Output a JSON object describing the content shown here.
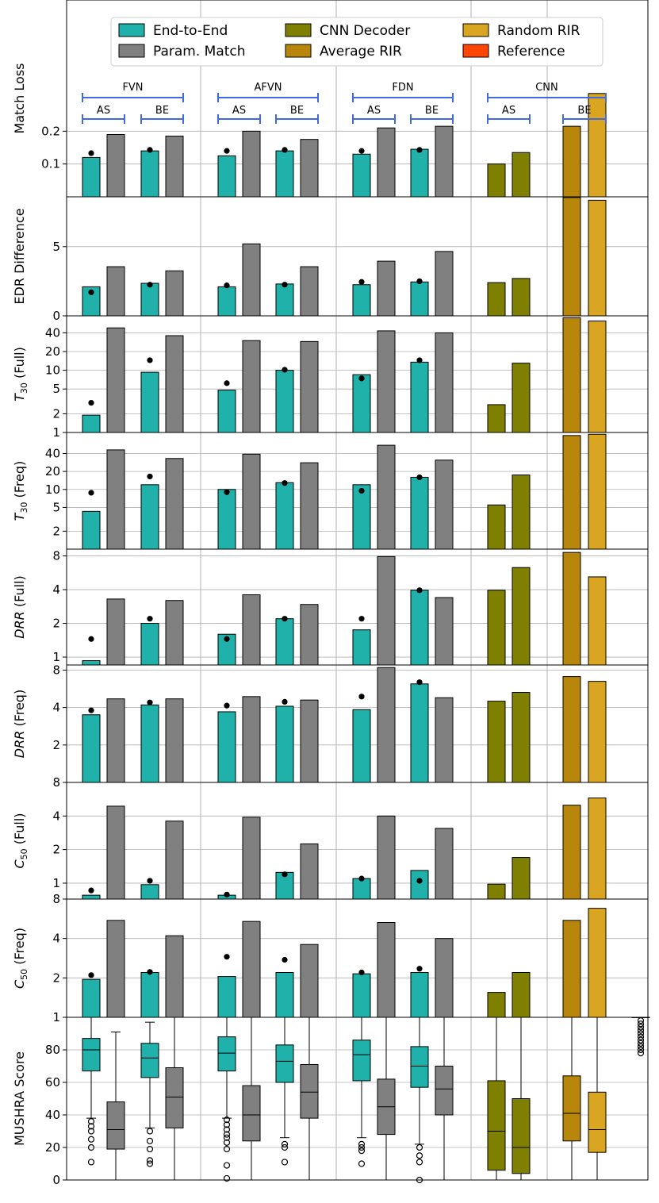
{
  "legend": {
    "placement": "top",
    "entries": [
      {
        "label": "End-to-End",
        "color": "#20b2aa"
      },
      {
        "label": "Param. Match",
        "color": "#808080"
      },
      {
        "label": "CNN Decoder",
        "color": "#808000"
      },
      {
        "label": "Average RIR",
        "color": "#b8860b"
      },
      {
        "label": "Random RIR",
        "color": "#daa520"
      },
      {
        "label": "Reference",
        "color": "#ff4500"
      }
    ]
  },
  "groups": [
    {
      "label": "FVN",
      "sub": [
        "AS",
        "BE"
      ]
    },
    {
      "label": "AFVN",
      "sub": [
        "AS",
        "BE"
      ]
    },
    {
      "label": "FDN",
      "sub": [
        "AS",
        "BE"
      ]
    },
    {
      "label": "CNN",
      "sub": [
        "AS",
        "BE"
      ]
    }
  ],
  "chart_data": [
    {
      "type": "bar",
      "ylabel": "Match Loss",
      "scale": "linear",
      "ylim": [
        0,
        0.6
      ],
      "ticks": [
        {
          "v": 0.1,
          "label": "0.1"
        },
        {
          "v": 0.2,
          "label": "0.2"
        }
      ],
      "bars": [
        0.12,
        0.19,
        0.14,
        0.185,
        0.125,
        0.2,
        0.14,
        0.175,
        0.13,
        0.21,
        0.145,
        0.215,
        0.1,
        0.135,
        0.215,
        0.315
      ],
      "dots": [
        0.133,
        null,
        0.143,
        null,
        0.14,
        null,
        0.143,
        null,
        0.14,
        null,
        0.143,
        null,
        null,
        null,
        null,
        null
      ]
    },
    {
      "type": "bar",
      "ylabel": "EDR Difference",
      "scale": "linear",
      "ylim": [
        0,
        8.6
      ],
      "ticks": [
        {
          "v": 0,
          "label": "0"
        },
        {
          "v": 5,
          "label": "5"
        }
      ],
      "bars": [
        2.1,
        3.55,
        2.35,
        3.25,
        2.1,
        5.2,
        2.3,
        3.55,
        2.25,
        3.95,
        2.45,
        4.65,
        2.4,
        2.7,
        8.55,
        8.35
      ],
      "dots": [
        1.7,
        null,
        2.25,
        null,
        2.2,
        null,
        2.25,
        null,
        2.45,
        null,
        2.5,
        null,
        null,
        null,
        null,
        null
      ]
    },
    {
      "type": "bar",
      "ylabel": "T30 (Full)",
      "sub": "30",
      "label_pre": "T",
      "label_post": " (Full)",
      "scale": "log",
      "ylim": [
        1,
        75
      ],
      "ticks": [
        {
          "v": 1,
          "label": "1"
        },
        {
          "v": 2,
          "label": "2"
        },
        {
          "v": 5,
          "label": "5"
        },
        {
          "v": 10,
          "label": "10"
        },
        {
          "v": 20,
          "label": "20"
        },
        {
          "v": 40,
          "label": "40"
        }
      ],
      "bars": [
        1.9,
        48,
        9.3,
        36,
        4.8,
        30,
        10,
        29,
        8.5,
        43,
        13.5,
        40,
        2.8,
        13,
        70,
        62
      ],
      "dots": [
        3.0,
        null,
        14.5,
        null,
        6.2,
        null,
        10.2,
        null,
        7.4,
        null,
        14.5,
        null,
        null,
        null,
        null,
        null
      ]
    },
    {
      "type": "bar",
      "ylabel": "T30 (Freq)",
      "sub": "30",
      "label_pre": "T",
      "label_post": " (Freq)",
      "scale": "log",
      "ylim": [
        1,
        90
      ],
      "ticks": [
        {
          "v": 2,
          "label": "2"
        },
        {
          "v": 5,
          "label": "5"
        },
        {
          "v": 10,
          "label": "10"
        },
        {
          "v": 20,
          "label": "20"
        },
        {
          "v": 40,
          "label": "40"
        }
      ],
      "bars": [
        4.3,
        46,
        12,
        33,
        10,
        39,
        13,
        28,
        12,
        55,
        16,
        31,
        5.5,
        17.5,
        80,
        84
      ],
      "dots": [
        8.8,
        null,
        16.5,
        null,
        9.0,
        null,
        12.8,
        null,
        9.5,
        null,
        16,
        null,
        null,
        null,
        null,
        null
      ]
    },
    {
      "type": "bar",
      "ylabel": "DRR (Full)",
      "label_pre": "DRR",
      "label_post": " (Full)",
      "scale": "log",
      "ylim": [
        0.85,
        9.2
      ],
      "ticks": [
        {
          "v": 1,
          "label": "1"
        },
        {
          "v": 2,
          "label": "2"
        },
        {
          "v": 4,
          "label": "4"
        },
        {
          "v": 8,
          "label": "8"
        }
      ],
      "bars": [
        0.93,
        3.3,
        2.0,
        3.2,
        1.6,
        3.6,
        2.2,
        2.95,
        1.75,
        7.9,
        3.95,
        3.4,
        3.95,
        6.3,
        8.6,
        5.2
      ],
      "dots": [
        1.45,
        null,
        2.2,
        null,
        1.45,
        null,
        2.2,
        null,
        2.2,
        null,
        3.95,
        null,
        null,
        null,
        null,
        null
      ]
    },
    {
      "type": "bar",
      "ylabel": "DRR (Freq)",
      "label_pre": "DRR",
      "label_post": " (Freq)",
      "scale": "log",
      "ylim": [
        1.0,
        8.8
      ],
      "ticks": [
        {
          "v": 2,
          "label": "2"
        },
        {
          "v": 4,
          "label": "4"
        },
        {
          "v": 8,
          "label": "8"
        }
      ],
      "bars": [
        3.5,
        4.7,
        4.2,
        4.7,
        3.7,
        4.9,
        4.1,
        4.6,
        3.85,
        8.4,
        6.2,
        4.8,
        4.5,
        5.3,
        7.1,
        6.5
      ],
      "dots": [
        3.8,
        null,
        4.4,
        null,
        4.15,
        null,
        4.45,
        null,
        4.9,
        null,
        6.4,
        null,
        null,
        null,
        null,
        null
      ]
    },
    {
      "type": "bar",
      "ylabel": "C50 (Full)",
      "sub": "50",
      "label_pre": "C",
      "label_post": " (Full)",
      "scale": "log",
      "ylim": [
        0.72,
        8
      ],
      "ticks": [
        {
          "v": 1,
          "label": "1"
        },
        {
          "v": 2,
          "label": "2"
        },
        {
          "v": 4,
          "label": "4"
        },
        {
          "v": 8,
          "label": "8"
        }
      ],
      "bars": [
        0.78,
        4.9,
        0.97,
        3.6,
        0.78,
        3.9,
        1.25,
        2.25,
        1.1,
        4.0,
        1.3,
        3.1,
        0.98,
        1.7,
        5.0,
        5.8
      ],
      "dots": [
        0.86,
        null,
        1.05,
        null,
        0.79,
        null,
        1.2,
        null,
        1.1,
        null,
        1.05,
        null,
        null,
        null,
        null,
        null
      ]
    },
    {
      "type": "bar",
      "ylabel": "C50 (Freq)",
      "sub": "50",
      "label_pre": "C",
      "label_post": " (Freq)",
      "scale": "log",
      "ylim": [
        1,
        8
      ],
      "ticks": [
        {
          "v": 1,
          "label": "1"
        },
        {
          "v": 2,
          "label": "2"
        },
        {
          "v": 4,
          "label": "4"
        },
        {
          "v": 8,
          "label": "8"
        }
      ],
      "bars": [
        1.95,
        5.5,
        2.2,
        4.2,
        2.05,
        5.4,
        2.2,
        3.6,
        2.15,
        5.3,
        2.2,
        4.0,
        1.55,
        2.2,
        5.5,
        6.8
      ],
      "dots": [
        2.1,
        null,
        2.22,
        null,
        2.9,
        null,
        2.75,
        null,
        2.2,
        null,
        2.35,
        null,
        null,
        null,
        null,
        null
      ]
    },
    {
      "type": "boxplot",
      "ylabel": "MUSHRA Score",
      "scale": "linear",
      "ylim": [
        0,
        100
      ],
      "ticks": [
        {
          "v": 0,
          "label": "0"
        },
        {
          "v": 20,
          "label": "20"
        },
        {
          "v": 40,
          "label": "40"
        },
        {
          "v": 60,
          "label": "60"
        },
        {
          "v": 80,
          "label": "80"
        }
      ],
      "boxes": [
        {
          "q1": 67,
          "med": 80,
          "q3": 87,
          "wlo": 38,
          "whi": 100,
          "out": [
            11,
            20,
            25,
            30,
            33,
            36
          ]
        },
        {
          "q1": 19,
          "med": 31,
          "q3": 48,
          "wlo": 0,
          "whi": 91,
          "out": []
        },
        {
          "q1": 63,
          "med": 75,
          "q3": 84,
          "wlo": 32,
          "whi": 97,
          "out": [
            10,
            12,
            19,
            24,
            30
          ]
        },
        {
          "q1": 32,
          "med": 51,
          "q3": 69,
          "wlo": 0,
          "whi": 100,
          "out": []
        },
        {
          "q1": 67,
          "med": 78,
          "q3": 88,
          "wlo": 38,
          "whi": 100,
          "out": [
            1,
            9,
            19,
            23,
            26,
            28,
            31,
            34,
            37
          ]
        },
        {
          "q1": 24,
          "med": 40,
          "q3": 58,
          "wlo": 0,
          "whi": 100,
          "out": []
        },
        {
          "q1": 60,
          "med": 73,
          "q3": 83,
          "wlo": 26,
          "whi": 100,
          "out": [
            11,
            20,
            22
          ]
        },
        {
          "q1": 38,
          "med": 54,
          "q3": 71,
          "wlo": 0,
          "whi": 100,
          "out": []
        },
        {
          "q1": 61,
          "med": 77,
          "q3": 86,
          "wlo": 26,
          "whi": 100,
          "out": [
            10,
            18,
            20,
            22
          ]
        },
        {
          "q1": 28,
          "med": 45,
          "q3": 62,
          "wlo": 0,
          "whi": 100,
          "out": []
        },
        {
          "q1": 57,
          "med": 70,
          "q3": 82,
          "wlo": 22,
          "whi": 100,
          "out": [
            0,
            11,
            15,
            20
          ]
        },
        {
          "q1": 40,
          "med": 56,
          "q3": 70,
          "wlo": 0,
          "whi": 100,
          "out": []
        },
        {
          "q1": 6,
          "med": 30,
          "q3": 61,
          "wlo": 0,
          "whi": 100,
          "out": []
        },
        {
          "q1": 4,
          "med": 20,
          "q3": 50,
          "wlo": 0,
          "whi": 100,
          "out": []
        },
        {
          "q1": 24,
          "med": 41,
          "q3": 64,
          "wlo": 0,
          "whi": 100,
          "out": []
        },
        {
          "q1": 17,
          "med": 31,
          "q3": 54,
          "wlo": 0,
          "whi": 100,
          "out": []
        },
        {
          "q1": 100,
          "med": 100,
          "q3": 100,
          "wlo": 100,
          "whi": 100,
          "out": [
            78,
            80,
            82,
            84,
            86,
            88,
            90,
            92,
            94,
            96,
            98
          ]
        }
      ]
    }
  ]
}
